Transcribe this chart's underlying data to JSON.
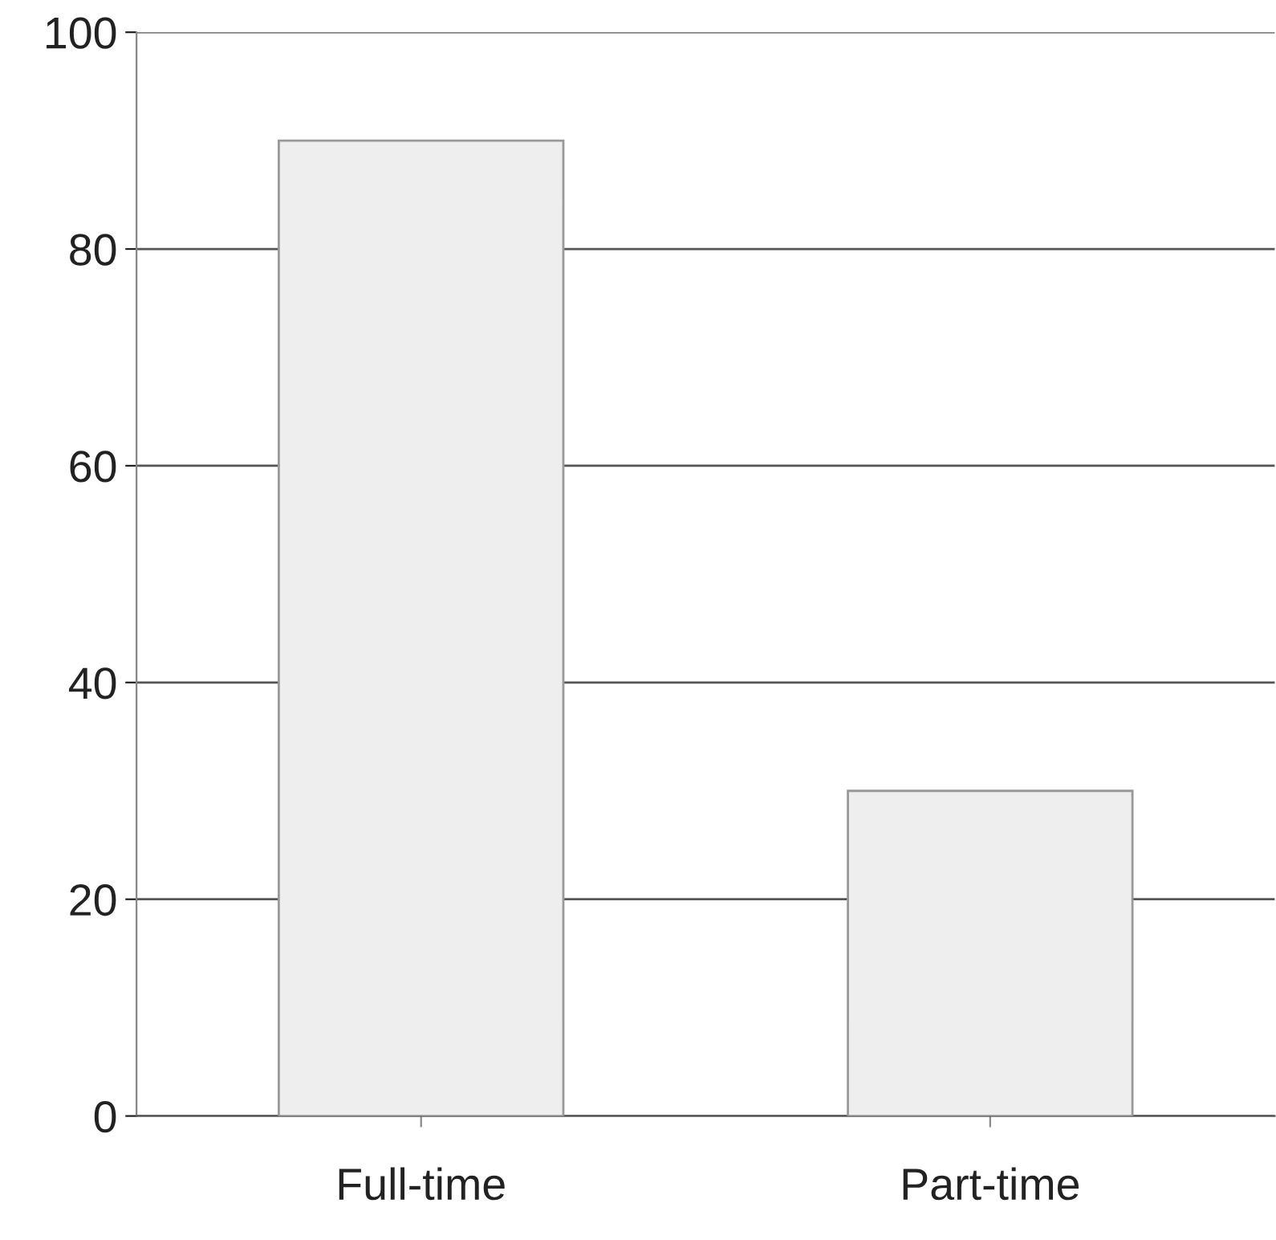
{
  "chart_data": {
    "type": "bar",
    "categories": [
      "Full-time",
      "Part-time"
    ],
    "values": [
      90,
      30
    ],
    "color": "#eeeeee",
    "ylim": [
      0,
      100
    ],
    "yticks": [
      0,
      20,
      40,
      60,
      80,
      100
    ],
    "grid": "y"
  }
}
